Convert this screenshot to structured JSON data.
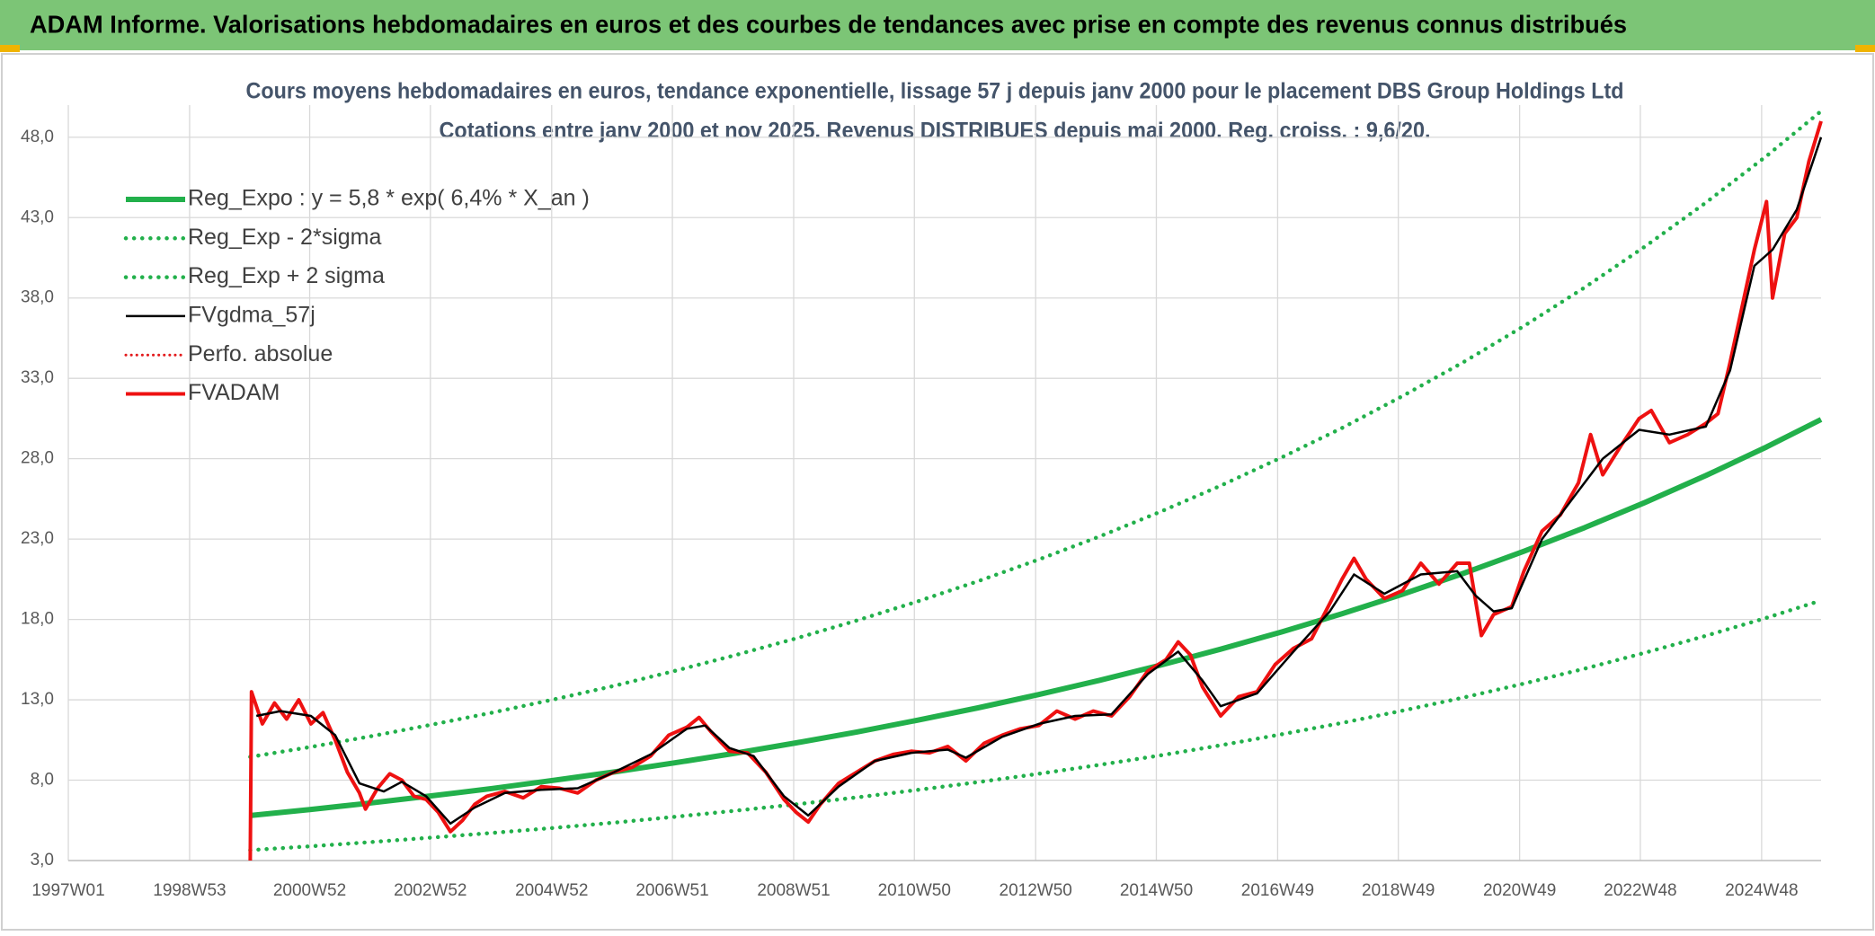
{
  "chart_data": {
    "type": "line",
    "title": "ADAM Informe. Valorisations hebdomadaires en euros et des courbes de tendances avec prise en compte des revenus connus distribués",
    "subtitle": [
      "Cours moyens hebdomadaires en euros, tendance exponentielle, lissage 57 j depuis janv 2000 pour le placement DBS Group Holdings Ltd",
      "Cotations entre janv 2000 et nov 2025. Revenus DISTRIBUES depuis mai 2000. Reg. croiss. : 9,6/20."
    ],
    "xlim": [
      1997,
      2025.9
    ],
    "xticks": [
      {
        "value": 1997,
        "label": "1997W01"
      },
      {
        "value": 1999,
        "label": "1998W53"
      },
      {
        "value": 2000.98,
        "label": "2000W52"
      },
      {
        "value": 2002.97,
        "label": "2002W52"
      },
      {
        "value": 2004.97,
        "label": "2004W52"
      },
      {
        "value": 2006.96,
        "label": "2006W51"
      },
      {
        "value": 2008.96,
        "label": "2008W51"
      },
      {
        "value": 2010.95,
        "label": "2010W50"
      },
      {
        "value": 2012.95,
        "label": "2012W50"
      },
      {
        "value": 2014.94,
        "label": "2014W50"
      },
      {
        "value": 2016.94,
        "label": "2016W49"
      },
      {
        "value": 2018.93,
        "label": "2018W49"
      },
      {
        "value": 2020.93,
        "label": "2020W49"
      },
      {
        "value": 2022.92,
        "label": "2022W48"
      },
      {
        "value": 2024.92,
        "label": "2024W48"
      }
    ],
    "ylim": [
      3,
      50
    ],
    "yticks": [
      {
        "value": 3,
        "label": "3,0"
      },
      {
        "value": 8,
        "label": "8,0"
      },
      {
        "value": 13,
        "label": "13,0"
      },
      {
        "value": 18,
        "label": "18,0"
      },
      {
        "value": 23,
        "label": "23,0"
      },
      {
        "value": 28,
        "label": "28,0"
      },
      {
        "value": 33,
        "label": "33,0"
      },
      {
        "value": 38,
        "label": "38,0"
      },
      {
        "value": 43,
        "label": "43,0"
      },
      {
        "value": 48,
        "label": "48,0"
      }
    ],
    "grid": true,
    "legend": "top-left",
    "series": [
      {
        "name": "Reg_Expo : y = 5,8 * exp( 6,4% *  X_an )",
        "color": "#22b04b",
        "dotted": false,
        "width": 6,
        "x": [
          2000,
          2001,
          2002,
          2003,
          2004,
          2005,
          2006,
          2007,
          2008,
          2009,
          2010,
          2011,
          2012,
          2013,
          2014,
          2015,
          2016,
          2017,
          2018,
          2019,
          2020,
          2021,
          2022,
          2023,
          2024,
          2025,
          2025.9
        ],
        "values": [
          5.8,
          6.18,
          6.59,
          7.03,
          7.49,
          7.99,
          8.51,
          9.08,
          9.68,
          10.32,
          11.0,
          11.73,
          12.5,
          13.33,
          14.21,
          15.15,
          16.15,
          17.22,
          18.35,
          19.57,
          20.86,
          22.24,
          23.71,
          25.28,
          26.95,
          28.73,
          30.44
        ]
      },
      {
        "name": "Reg_Exp - 2*sigma",
        "color": "#22b04b",
        "dotted": true,
        "width": 4.5,
        "x": [
          2000,
          2001,
          2002,
          2003,
          2004,
          2005,
          2006,
          2007,
          2008,
          2009,
          2010,
          2011,
          2012,
          2013,
          2014,
          2015,
          2016,
          2017,
          2018,
          2019,
          2020,
          2021,
          2022,
          2023,
          2024,
          2025,
          2025.9
        ],
        "values": [
          3.65,
          3.89,
          4.15,
          4.43,
          4.72,
          5.03,
          5.36,
          5.72,
          6.1,
          6.5,
          6.93,
          7.39,
          7.88,
          8.4,
          8.95,
          9.54,
          10.17,
          10.85,
          11.56,
          12.33,
          13.14,
          14.01,
          14.94,
          15.93,
          16.98,
          18.1,
          19.18
        ]
      },
      {
        "name": "Reg_Exp + 2 sigma",
        "color": "#22b04b",
        "dotted": true,
        "width": 4.5,
        "x": [
          2000,
          2001,
          2002,
          2003,
          2004,
          2005,
          2006,
          2007,
          2008,
          2009,
          2010,
          2011,
          2012,
          2013,
          2014,
          2015,
          2016,
          2017,
          2018,
          2019,
          2020,
          2021,
          2022,
          2023,
          2024,
          2025,
          2025.9
        ],
        "values": [
          9.45,
          10.07,
          10.74,
          11.46,
          12.21,
          13.02,
          13.87,
          14.8,
          15.78,
          16.82,
          17.93,
          19.12,
          20.38,
          21.73,
          23.16,
          24.69,
          26.32,
          28.07,
          29.91,
          31.9,
          34.0,
          36.25,
          38.65,
          41.21,
          43.93,
          46.83,
          49.62
        ]
      },
      {
        "name": "FVgdma_57j",
        "color": "#000000",
        "dotted": false,
        "width": 2.5,
        "x": [
          2000.1,
          2000.5,
          2001.0,
          2001.4,
          2001.8,
          2002.2,
          2002.5,
          2002.9,
          2003.3,
          2003.7,
          2004.2,
          2004.8,
          2005.4,
          2006.0,
          2006.6,
          2007.2,
          2007.5,
          2007.9,
          2008.3,
          2008.8,
          2009.2,
          2009.7,
          2010.3,
          2010.9,
          2011.5,
          2011.8,
          2012.4,
          2013.0,
          2013.6,
          2014.2,
          2014.8,
          2015.3,
          2015.7,
          2016.0,
          2016.6,
          2017.2,
          2017.8,
          2018.2,
          2018.7,
          2019.3,
          2019.9,
          2020.2,
          2020.5,
          2020.8,
          2021.3,
          2021.9,
          2022.3,
          2022.9,
          2023.4,
          2024.0,
          2024.4,
          2024.8,
          2025.1,
          2025.5,
          2025.9
        ],
        "values": [
          12.0,
          12.3,
          12.0,
          10.8,
          7.8,
          7.3,
          7.9,
          7.0,
          5.3,
          6.3,
          7.2,
          7.4,
          7.5,
          8.5,
          9.6,
          11.2,
          11.4,
          10.0,
          9.5,
          7.0,
          5.8,
          7.6,
          9.2,
          9.7,
          9.9,
          9.4,
          10.7,
          11.5,
          12.0,
          12.1,
          14.6,
          16.0,
          14.2,
          12.6,
          13.4,
          16.0,
          18.5,
          20.8,
          19.6,
          20.8,
          21.0,
          19.5,
          18.5,
          18.7,
          23.0,
          26.0,
          28.0,
          29.8,
          29.5,
          30.0,
          33.5,
          40.0,
          41.0,
          43.5,
          48.0
        ]
      },
      {
        "name": "Perfo. absolue",
        "color": "#e31a1c",
        "dotted": true,
        "width": 3,
        "x": [],
        "values": []
      },
      {
        "name": "FVADAM",
        "color": "#ee1111",
        "dotted": false,
        "width": 4,
        "x": [
          2000.0,
          2000.02,
          2000.2,
          2000.4,
          2000.6,
          2000.8,
          2001.0,
          2001.2,
          2001.4,
          2001.6,
          2001.8,
          2001.9,
          2002.1,
          2002.3,
          2002.5,
          2002.7,
          2002.9,
          2003.1,
          2003.3,
          2003.5,
          2003.7,
          2003.9,
          2004.2,
          2004.5,
          2004.8,
          2005.1,
          2005.4,
          2005.7,
          2006.0,
          2006.3,
          2006.6,
          2006.9,
          2007.2,
          2007.4,
          2007.6,
          2007.9,
          2008.2,
          2008.5,
          2008.8,
          2009.0,
          2009.2,
          2009.4,
          2009.7,
          2010.0,
          2010.3,
          2010.6,
          2010.9,
          2011.2,
          2011.5,
          2011.8,
          2012.1,
          2012.4,
          2012.7,
          2013.0,
          2013.3,
          2013.6,
          2013.9,
          2014.2,
          2014.5,
          2014.8,
          2015.1,
          2015.3,
          2015.5,
          2015.7,
          2016.0,
          2016.3,
          2016.6,
          2016.9,
          2017.2,
          2017.5,
          2017.8,
          2018.0,
          2018.2,
          2018.4,
          2018.7,
          2019.0,
          2019.3,
          2019.6,
          2019.9,
          2020.1,
          2020.3,
          2020.5,
          2020.8,
          2021.0,
          2021.3,
          2021.6,
          2021.9,
          2022.1,
          2022.3,
          2022.6,
          2022.9,
          2023.1,
          2023.4,
          2023.7,
          2024.0,
          2024.2,
          2024.4,
          2024.6,
          2024.8,
          2025.0,
          2025.1,
          2025.3,
          2025.5,
          2025.7,
          2025.9
        ],
        "values": [
          3.0,
          13.5,
          11.5,
          12.8,
          11.8,
          13.0,
          11.5,
          12.2,
          10.5,
          8.5,
          7.2,
          6.2,
          7.5,
          8.4,
          8.0,
          7.0,
          6.8,
          6.0,
          4.8,
          5.5,
          6.5,
          7.0,
          7.3,
          6.9,
          7.6,
          7.5,
          7.2,
          8.0,
          8.5,
          8.8,
          9.5,
          10.8,
          11.3,
          11.9,
          11.0,
          9.8,
          9.7,
          8.5,
          6.8,
          6.0,
          5.4,
          6.5,
          7.8,
          8.5,
          9.2,
          9.6,
          9.8,
          9.7,
          10.1,
          9.2,
          10.3,
          10.8,
          11.2,
          11.4,
          12.3,
          11.8,
          12.3,
          12.0,
          13.2,
          14.8,
          15.5,
          16.6,
          15.8,
          13.8,
          12.0,
          13.2,
          13.5,
          15.2,
          16.2,
          16.8,
          19.0,
          20.5,
          21.8,
          20.5,
          19.3,
          19.8,
          21.5,
          20.2,
          21.5,
          21.5,
          17.0,
          18.3,
          18.8,
          21.0,
          23.5,
          24.5,
          26.5,
          29.5,
          27.0,
          28.8,
          30.5,
          31.0,
          29.0,
          29.5,
          30.2,
          30.8,
          34.0,
          37.5,
          41.0,
          44.0,
          38.0,
          42.0,
          43.0,
          46.5,
          49.0
        ]
      }
    ]
  }
}
